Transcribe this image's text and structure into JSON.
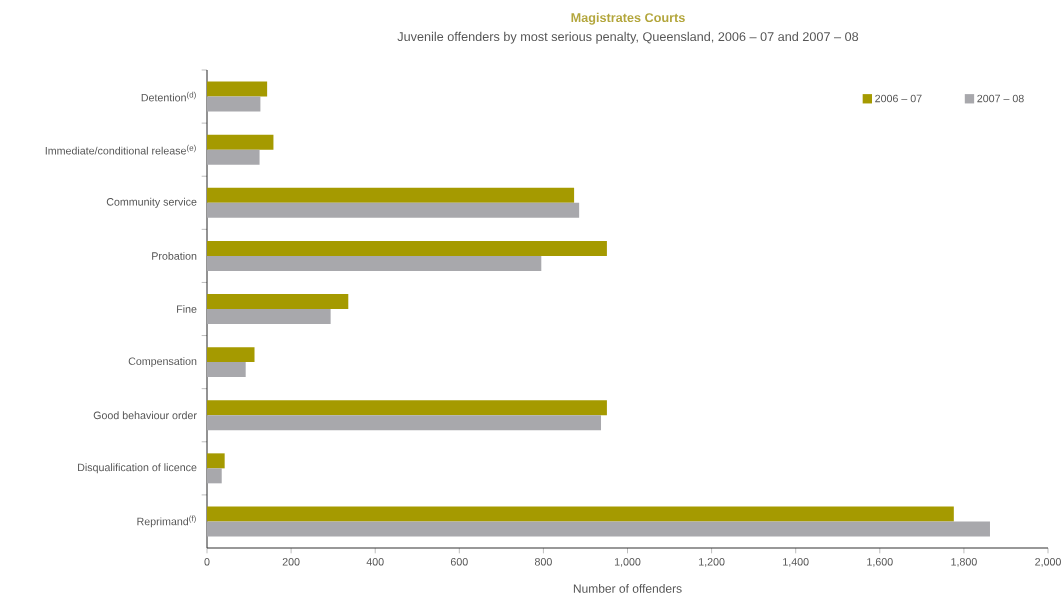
{
  "chart_data": {
    "type": "bar",
    "orientation": "horizontal",
    "title": "Magistrates Courts",
    "subtitle": "Juvenile offenders by most serious penalty, Queensland, 2006 – 07 and 2007 – 08",
    "xlabel": "Number of offenders",
    "categories": [
      "Detention$^{(d)}$",
      "Immediate/conditional release$^{(e)}$",
      "Community service",
      "Probation",
      "Fine",
      "Compensation",
      "Good behaviour order",
      "Disqualification of licence",
      "Reprimand$^{(f)}$"
    ],
    "series": [
      {
        "name": "2006 – 07",
        "color": "#a59a00",
        "values": [
          143,
          158,
          873,
          951,
          336,
          113,
          951,
          42,
          1776
        ]
      },
      {
        "name": "2007 – 08",
        "color": "#a8a8ac",
        "values": [
          127,
          125,
          885,
          795,
          294,
          92,
          937,
          35,
          1862
        ]
      }
    ],
    "xlim": [
      0,
      2000
    ],
    "xticks": [
      0,
      200,
      400,
      600,
      800,
      {
        "value": 1000,
        "label": "1,000"
      },
      {
        "value": 1200,
        "label": "1,200"
      },
      {
        "value": 1400,
        "label": "1,400"
      },
      {
        "value": 1600,
        "label": "1,600"
      },
      {
        "value": 1800,
        "label": "1,800"
      },
      {
        "value": 2000,
        "label": "2,000"
      }
    ],
    "legend": "top right",
    "grid": false
  }
}
